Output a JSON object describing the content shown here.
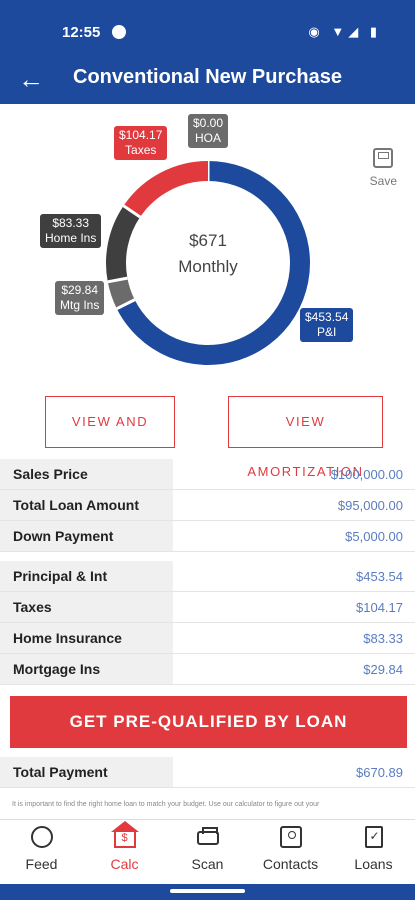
{
  "status_bar": {
    "time": "12:55",
    "icons": "◉ ▼◢ ▮"
  },
  "app_bar": {
    "back_icon": "←",
    "title": "Conventional New Purchase"
  },
  "chart_data": {
    "type": "pie",
    "donut": true,
    "center_label": {
      "value": "$671",
      "caption": "Monthly"
    },
    "slices": [
      {
        "label": "P&I",
        "display": "$453.54",
        "value": 453.54,
        "color": "#1d4a9c"
      },
      {
        "label": "Mtg Ins",
        "display": "$29.84",
        "value": 29.84,
        "color": "#6b6b6b"
      },
      {
        "label": "Home Ins",
        "display": "$83.33",
        "value": 83.33,
        "color": "#3f3f3f"
      },
      {
        "label": "Taxes",
        "display": "$104.17",
        "value": 104.17,
        "color": "#e03a3f"
      },
      {
        "label": "HOA",
        "display": "$0.00",
        "value": 0,
        "color": "#6b6b6b"
      }
    ]
  },
  "save": {
    "label": "Save"
  },
  "buttons": {
    "view_share": "VIEW AND SHARE",
    "view_amortization": "VIEW AMORTIZATION"
  },
  "loan_rows": [
    {
      "label": "Sales Price",
      "value": "$100,000.00"
    },
    {
      "label": "Total Loan Amount",
      "value": "$95,000.00"
    },
    {
      "label": "Down Payment",
      "value": "$5,000.00"
    }
  ],
  "payment_rows": [
    {
      "label": "Principal & Int",
      "value": "$453.54"
    },
    {
      "label": "Taxes",
      "value": "$104.17"
    },
    {
      "label": "Home Insurance",
      "value": "$83.33"
    },
    {
      "label": "Mortgage Ins",
      "value": "$29.84"
    }
  ],
  "cta": {
    "label": "GET PRE-QUALIFIED BY LOAN"
  },
  "total": {
    "label": "Total Payment",
    "value": "$670.89"
  },
  "disclaimer": "It is important to find the right home loan to match your budget. Use our calculator to figure out your",
  "nav": [
    {
      "label": "Feed",
      "icon": "globe-icon"
    },
    {
      "label": "Calc",
      "icon": "calc-house-icon"
    },
    {
      "label": "Scan",
      "icon": "printer-icon"
    },
    {
      "label": "Contacts",
      "icon": "contact-icon"
    },
    {
      "label": "Loans",
      "icon": "document-icon"
    }
  ],
  "colors": {
    "primary": "#1d4a9c",
    "accent": "#e03a3f",
    "value_text": "#5b7dbf"
  }
}
